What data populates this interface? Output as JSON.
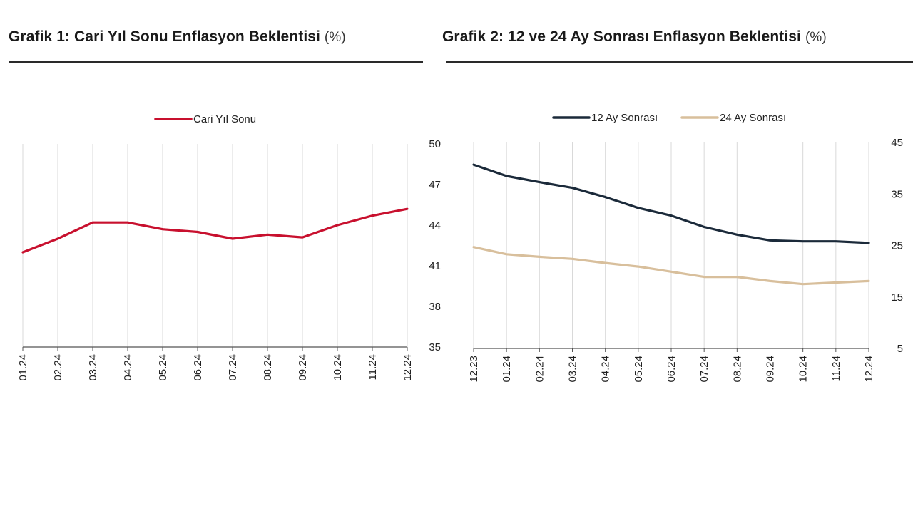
{
  "titles": {
    "chart1_main": "Grafik 1: Cari Yıl Sonu Enflasyon Beklentisi",
    "chart1_unit": "(%)",
    "chart2_main": "Grafik 2: 12 ve 24 Ay Sonrası Enflasyon Beklentisi",
    "chart2_unit": "(%)"
  },
  "chart_data": [
    {
      "type": "line",
      "title": "Grafik 1: Cari Yıl Sonu Enflasyon Beklentisi (%)",
      "categories": [
        "01.24",
        "02.24",
        "03.24",
        "04.24",
        "05.24",
        "06.24",
        "07.24",
        "08.24",
        "09.24",
        "10.24",
        "11.24",
        "12.24"
      ],
      "series": [
        {
          "name": "Cari Yıl Sonu",
          "color": "#c8102e",
          "values": [
            42.0,
            43.0,
            44.2,
            44.2,
            43.7,
            43.5,
            43.0,
            43.3,
            43.1,
            44.0,
            44.7,
            45.2
          ]
        }
      ],
      "yaxis_side": "right",
      "ylim": [
        35,
        50
      ],
      "yticks": [
        35,
        38,
        41,
        44,
        47,
        50
      ],
      "grid": "vertical",
      "legend": "top-center"
    },
    {
      "type": "line",
      "title": "Grafik 2: 12 ve 24 Ay Sonrası Enflasyon Beklentisi (%)",
      "categories": [
        "12.23",
        "01.24",
        "02.24",
        "03.24",
        "04.24",
        "05.24",
        "06.24",
        "07.24",
        "08.24",
        "09.24",
        "10.24",
        "11.24",
        "12.24"
      ],
      "series": [
        {
          "name": "12 Ay Sonrası",
          "color": "#1b2a3a",
          "values": [
            40.7,
            38.5,
            37.3,
            36.2,
            34.4,
            32.3,
            30.8,
            28.6,
            27.1,
            26.0,
            25.8,
            25.8,
            25.5
          ]
        },
        {
          "name": "24 Ay Sonrası",
          "color": "#d8bf9c",
          "values": [
            24.7,
            23.3,
            22.8,
            22.4,
            21.6,
            20.9,
            19.9,
            18.9,
            18.9,
            18.1,
            17.5,
            17.8,
            18.1
          ]
        }
      ],
      "yaxis_side": "right",
      "ylim": [
        5,
        45
      ],
      "yticks": [
        5,
        15,
        25,
        35,
        45
      ],
      "grid": "vertical",
      "legend": "top-center"
    }
  ]
}
